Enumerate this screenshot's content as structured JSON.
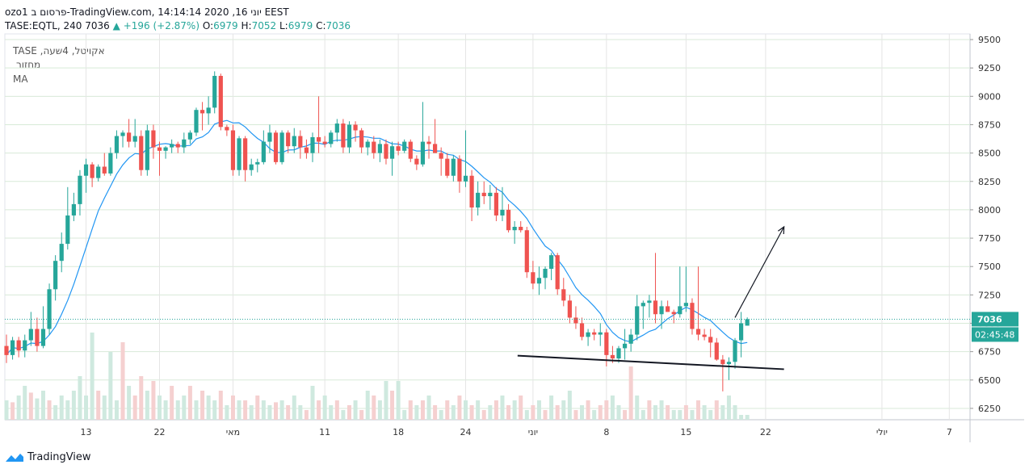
{
  "header": {
    "line1": "ozo1 פרסום ב-TradingView.com, יוני 16, 2020 14:14:14 EEST",
    "symbol": "TASE:EQTL, 240",
    "last": "7036",
    "change": "+196 (+2.87%)",
    "o_label": "O:",
    "o_val": "6979",
    "h_label": "H:",
    "h_val": "7052",
    "l_label": "L:",
    "l_val": "6979",
    "c_label": "C:",
    "c_val": "7036"
  },
  "legend": {
    "title": "TASE ,אקויטל, 4שעה",
    "volume": "מחזור",
    "ma": "MA"
  },
  "price_tag": "7036",
  "countdown": "02:45:48",
  "footer": {
    "brand": "TradingView"
  },
  "colors": {
    "up": "#26a69a",
    "down": "#ef5350",
    "ma": "#2196f3",
    "grid_h": "#d8ead8",
    "grid_v": "#e5e5e5",
    "vol_up": "#cfe9df",
    "vol_down": "#f5d0d0",
    "tag": "#26a69a"
  },
  "chart_data": {
    "type": "candlestick",
    "price_range": [
      6150,
      9550
    ],
    "y_ticks": [
      6250,
      6500,
      6750,
      7000,
      7250,
      7500,
      7750,
      8000,
      8250,
      8500,
      8750,
      9000,
      9250,
      9500
    ],
    "x_ticks": [
      {
        "label": "13",
        "idx": 13
      },
      {
        "label": "22",
        "idx": 25
      },
      {
        "label": "מאי",
        "idx": 37
      },
      {
        "label": "11",
        "idx": 52
      },
      {
        "label": "18",
        "idx": 64
      },
      {
        "label": "24",
        "idx": 75
      },
      {
        "label": "יוני",
        "idx": 86
      },
      {
        "label": "8",
        "idx": 98
      },
      {
        "label": "15",
        "idx": 111
      },
      {
        "label": "22",
        "idx": 124
      },
      {
        "label": "יולי",
        "idx": 143
      },
      {
        "label": "7",
        "idx": 154
      }
    ],
    "candles": [
      [
        6800,
        6900,
        6650,
        6720
      ],
      [
        6720,
        6880,
        6680,
        6850
      ],
      [
        6850,
        6880,
        6700,
        6760
      ],
      [
        6760,
        6900,
        6700,
        6850
      ],
      [
        6850,
        7100,
        6800,
        6950
      ],
      [
        6950,
        7050,
        6750,
        6800
      ],
      [
        6800,
        7150,
        6780,
        6950
      ],
      [
        6950,
        7350,
        6900,
        7300
      ],
      [
        7300,
        7600,
        7200,
        7550
      ],
      [
        7550,
        7800,
        7450,
        7700
      ],
      [
        7700,
        8200,
        7650,
        7950
      ],
      [
        7950,
        8150,
        7900,
        8050
      ],
      [
        8050,
        8350,
        7950,
        8300
      ],
      [
        8300,
        8450,
        8150,
        8400
      ],
      [
        8400,
        8420,
        8200,
        8280
      ],
      [
        8280,
        8400,
        8250,
        8380
      ],
      [
        8380,
        8500,
        8300,
        8320
      ],
      [
        8320,
        8550,
        8300,
        8500
      ],
      [
        8500,
        8700,
        8450,
        8650
      ],
      [
        8650,
        8700,
        8550,
        8680
      ],
      [
        8680,
        8800,
        8550,
        8600
      ],
      [
        8600,
        8800,
        8550,
        8650
      ],
      [
        8650,
        8700,
        8300,
        8350
      ],
      [
        8350,
        8750,
        8300,
        8700
      ],
      [
        8700,
        8750,
        8450,
        8550
      ],
      [
        8550,
        8600,
        8300,
        8520
      ],
      [
        8520,
        8560,
        8450,
        8550
      ],
      [
        8550,
        8620,
        8500,
        8580
      ],
      [
        8580,
        8600,
        8500,
        8550
      ],
      [
        8550,
        8680,
        8500,
        8620
      ],
      [
        8620,
        8700,
        8580,
        8680
      ],
      [
        8680,
        8900,
        8650,
        8880
      ],
      [
        8880,
        8950,
        8700,
        8850
      ],
      [
        8850,
        9000,
        8750,
        8900
      ],
      [
        8900,
        9220,
        8850,
        9180
      ],
      [
        9180,
        9200,
        8700,
        8730
      ],
      [
        8730,
        8750,
        8650,
        8700
      ],
      [
        8700,
        8750,
        8300,
        8350
      ],
      [
        8350,
        8650,
        8300,
        8630
      ],
      [
        8630,
        8650,
        8250,
        8350
      ],
      [
        8350,
        8450,
        8300,
        8400
      ],
      [
        8400,
        8450,
        8330,
        8420
      ],
      [
        8420,
        8700,
        8400,
        8600
      ],
      [
        8600,
        8750,
        8500,
        8680
      ],
      [
        8680,
        8700,
        8400,
        8420
      ],
      [
        8420,
        8700,
        8400,
        8680
      ],
      [
        8680,
        8700,
        8500,
        8560
      ],
      [
        8560,
        8720,
        8500,
        8650
      ],
      [
        8650,
        8700,
        8450,
        8550
      ],
      [
        8550,
        8620,
        8450,
        8500
      ],
      [
        8500,
        8680,
        8420,
        8640
      ],
      [
        8640,
        9000,
        8500,
        8600
      ],
      [
        8600,
        8650,
        8550,
        8580
      ],
      [
        8580,
        8700,
        8550,
        8680
      ],
      [
        8680,
        8800,
        8600,
        8760
      ],
      [
        8760,
        8800,
        8500,
        8550
      ],
      [
        8550,
        8780,
        8500,
        8750
      ],
      [
        8750,
        8780,
        8600,
        8700
      ],
      [
        8700,
        8720,
        8500,
        8550
      ],
      [
        8550,
        8620,
        8480,
        8600
      ],
      [
        8600,
        8650,
        8450,
        8500
      ],
      [
        8500,
        8620,
        8420,
        8580
      ],
      [
        8580,
        8620,
        8400,
        8450
      ],
      [
        8450,
        8600,
        8300,
        8560
      ],
      [
        8560,
        8600,
        8480,
        8520
      ],
      [
        8520,
        8620,
        8500,
        8600
      ],
      [
        8600,
        8620,
        8420,
        8450
      ],
      [
        8450,
        8480,
        8350,
        8400
      ],
      [
        8400,
        8950,
        8380,
        8600
      ],
      [
        8600,
        8650,
        8450,
        8580
      ],
      [
        8580,
        8800,
        8500,
        8500
      ],
      [
        8500,
        8550,
        8300,
        8450
      ],
      [
        8450,
        8500,
        8280,
        8300
      ],
      [
        8300,
        8480,
        8250,
        8450
      ],
      [
        8450,
        8480,
        8150,
        8250
      ],
      [
        8250,
        8700,
        8200,
        8300
      ],
      [
        8300,
        8350,
        7900,
        8020
      ],
      [
        8020,
        8250,
        7950,
        8150
      ],
      [
        8150,
        8250,
        8050,
        8120
      ],
      [
        8120,
        8220,
        8000,
        8150
      ],
      [
        8150,
        8200,
        7900,
        7950
      ],
      [
        7950,
        8200,
        7900,
        8000
      ],
      [
        8000,
        8050,
        7800,
        7820
      ],
      [
        7820,
        7900,
        7700,
        7850
      ],
      [
        7850,
        7900,
        7800,
        7820
      ],
      [
        7820,
        7850,
        7400,
        7450
      ],
      [
        7450,
        7550,
        7300,
        7350
      ],
      [
        7350,
        7500,
        7250,
        7400
      ],
      [
        7400,
        7500,
        7300,
        7480
      ],
      [
        7480,
        7620,
        7380,
        7600
      ],
      [
        7600,
        7620,
        7250,
        7300
      ],
      [
        7300,
        7400,
        7150,
        7200
      ],
      [
        7200,
        7250,
        7000,
        7050
      ],
      [
        7050,
        7150,
        6950,
        7000
      ],
      [
        7000,
        7050,
        6850,
        6880
      ],
      [
        6880,
        6950,
        6800,
        6920
      ],
      [
        6920,
        6950,
        6850,
        6900
      ],
      [
        6900,
        7000,
        6800,
        6920
      ],
      [
        6920,
        6950,
        6620,
        6720
      ],
      [
        6720,
        6800,
        6650,
        6690
      ],
      [
        6690,
        6800,
        6650,
        6780
      ],
      [
        6780,
        6950,
        6680,
        6820
      ],
      [
        6820,
        6950,
        6750,
        6900
      ],
      [
        6900,
        7250,
        6850,
        7150
      ],
      [
        7150,
        7200,
        6950,
        7180
      ],
      [
        7180,
        7250,
        7050,
        7200
      ],
      [
        7200,
        7620,
        7000,
        7080
      ],
      [
        7080,
        7200,
        6950,
        7150
      ],
      [
        7150,
        7200,
        7100,
        7100
      ],
      [
        7100,
        7120,
        7000,
        7080
      ],
      [
        7080,
        7500,
        7050,
        7150
      ],
      [
        7150,
        7500,
        7100,
        7180
      ],
      [
        7180,
        7220,
        6900,
        6950
      ],
      [
        6950,
        7500,
        6850,
        6900
      ],
      [
        6900,
        6950,
        6850,
        6880
      ],
      [
        6880,
        6950,
        6700,
        6830
      ],
      [
        6830,
        6870,
        6670,
        6680
      ],
      [
        6680,
        6720,
        6400,
        6640
      ],
      [
        6640,
        6700,
        6500,
        6660
      ],
      [
        6660,
        6870,
        6600,
        6850
      ],
      [
        6850,
        7100,
        6700,
        7000
      ],
      [
        6979,
        7052,
        6979,
        7036
      ]
    ],
    "volume": [
      [
        0.2,
        1
      ],
      [
        0.18,
        0
      ],
      [
        0.25,
        1
      ],
      [
        0.35,
        1
      ],
      [
        0.28,
        0
      ],
      [
        0.22,
        1
      ],
      [
        0.3,
        1
      ],
      [
        0.2,
        0
      ],
      [
        0.15,
        1
      ],
      [
        0.25,
        1
      ],
      [
        0.2,
        1
      ],
      [
        0.3,
        1
      ],
      [
        0.45,
        1
      ],
      [
        0.25,
        1
      ],
      [
        0.9,
        1
      ],
      [
        0.3,
        0
      ],
      [
        0.25,
        1
      ],
      [
        0.7,
        1
      ],
      [
        0.2,
        1
      ],
      [
        0.8,
        0
      ],
      [
        0.35,
        1
      ],
      [
        0.25,
        0
      ],
      [
        0.45,
        0
      ],
      [
        0.3,
        1
      ],
      [
        0.4,
        0
      ],
      [
        0.25,
        1
      ],
      [
        0.2,
        1
      ],
      [
        0.35,
        0
      ],
      [
        0.2,
        1
      ],
      [
        0.25,
        1
      ],
      [
        0.35,
        0
      ],
      [
        0.2,
        1
      ],
      [
        0.3,
        0
      ],
      [
        0.25,
        1
      ],
      [
        0.2,
        1
      ],
      [
        0.3,
        0
      ],
      [
        0.15,
        1
      ],
      [
        0.25,
        0
      ],
      [
        0.2,
        1
      ],
      [
        0.2,
        0
      ],
      [
        0.15,
        1
      ],
      [
        0.25,
        0
      ],
      [
        0.2,
        1
      ],
      [
        0.15,
        1
      ],
      [
        0.18,
        0
      ],
      [
        0.2,
        1
      ],
      [
        0.15,
        0
      ],
      [
        0.25,
        1
      ],
      [
        0.15,
        1
      ],
      [
        0.1,
        0
      ],
      [
        0.35,
        1
      ],
      [
        0.2,
        0
      ],
      [
        0.25,
        1
      ],
      [
        0.15,
        1
      ],
      [
        0.2,
        0
      ],
      [
        0.1,
        1
      ],
      [
        0.15,
        0
      ],
      [
        0.2,
        1
      ],
      [
        0.1,
        0
      ],
      [
        0.3,
        1
      ],
      [
        0.25,
        0
      ],
      [
        0.2,
        1
      ],
      [
        0.4,
        1
      ],
      [
        0.3,
        0
      ],
      [
        0.4,
        1
      ],
      [
        0.1,
        1
      ],
      [
        0.2,
        0
      ],
      [
        0.15,
        1
      ],
      [
        0.2,
        0
      ],
      [
        0.25,
        1
      ],
      [
        0.15,
        0
      ],
      [
        0.1,
        1
      ],
      [
        0.2,
        0
      ],
      [
        0.15,
        1
      ],
      [
        0.25,
        0
      ],
      [
        0.2,
        1
      ],
      [
        0.15,
        0
      ],
      [
        0.2,
        1
      ],
      [
        0.1,
        0
      ],
      [
        0.15,
        1
      ],
      [
        0.2,
        0
      ],
      [
        0.25,
        1
      ],
      [
        0.15,
        0
      ],
      [
        0.2,
        1
      ],
      [
        0.25,
        0
      ],
      [
        0.1,
        1
      ],
      [
        0.15,
        0
      ],
      [
        0.2,
        1
      ],
      [
        0.1,
        0
      ],
      [
        0.25,
        1
      ],
      [
        0.15,
        0
      ],
      [
        0.2,
        1
      ],
      [
        0.3,
        1
      ],
      [
        0.1,
        0
      ],
      [
        0.15,
        1
      ],
      [
        0.2,
        0
      ],
      [
        0.1,
        1
      ],
      [
        0.15,
        0
      ],
      [
        0.2,
        0
      ],
      [
        0.25,
        1
      ],
      [
        0.15,
        1
      ],
      [
        0.1,
        0
      ],
      [
        0.55,
        0
      ],
      [
        0.25,
        1
      ],
      [
        0.1,
        1
      ],
      [
        0.2,
        0
      ],
      [
        0.15,
        1
      ],
      [
        0.2,
        1
      ],
      [
        0.15,
        0
      ],
      [
        0.1,
        1
      ],
      [
        0.1,
        1
      ],
      [
        0.15,
        0
      ],
      [
        0.1,
        1
      ],
      [
        0.2,
        0
      ],
      [
        0.15,
        1
      ],
      [
        0.1,
        1
      ],
      [
        0.2,
        0
      ],
      [
        0.15,
        1
      ],
      [
        0.25,
        1
      ],
      [
        0.15,
        1
      ],
      [
        0.05,
        1
      ],
      [
        0.05,
        1
      ]
    ],
    "ma_period": 9,
    "annotations": {
      "support_line": [
        [
          98,
          6665
        ],
        [
          127,
          6595
        ]
      ],
      "arrow": [
        [
          119,
          7050
        ],
        [
          127,
          7850
        ]
      ]
    }
  }
}
